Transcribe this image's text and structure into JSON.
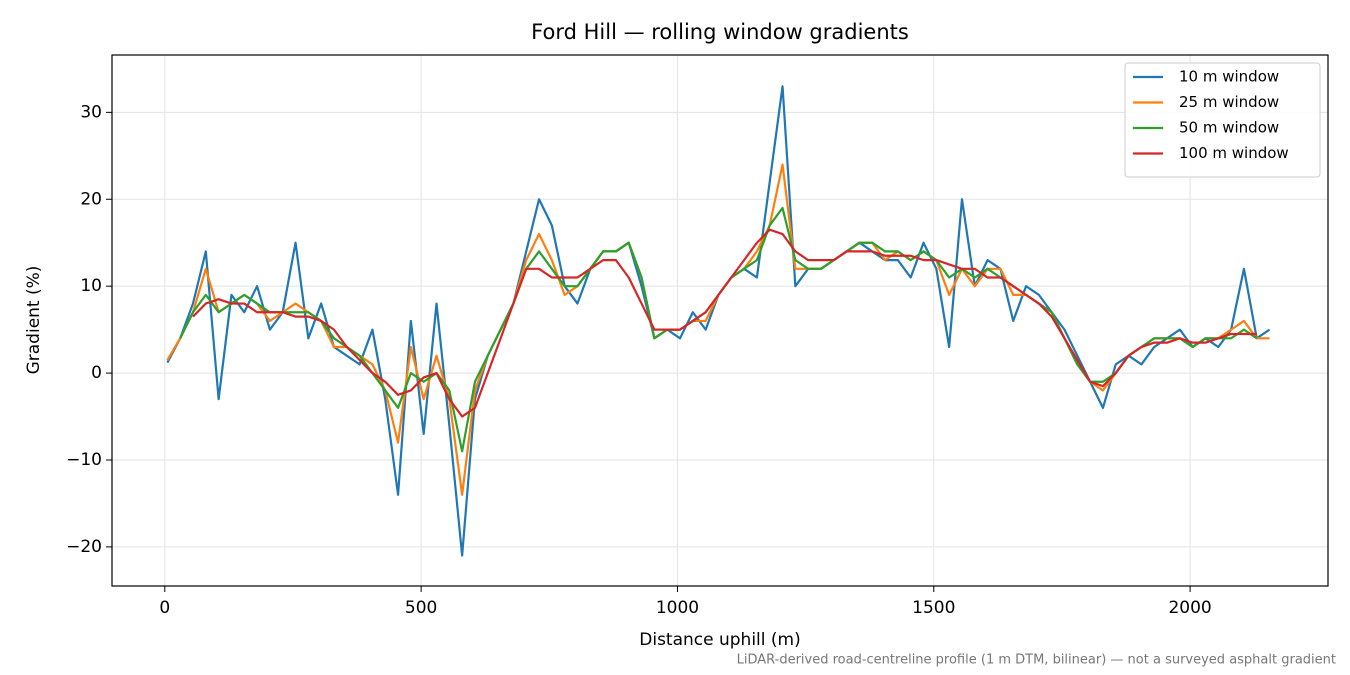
{
  "chart_data": {
    "type": "line",
    "title": "Ford Hill — rolling window gradients",
    "x_label": "Distance uphill (m)",
    "y_label": "Gradient (%)",
    "footnote": "LiDAR-derived road-centreline profile (1 m DTM, bilinear) — not a surveyed asphalt gradient",
    "x": [
      5,
      30,
      55,
      80,
      105,
      130,
      155,
      180,
      205,
      230,
      255,
      280,
      305,
      330,
      355,
      380,
      405,
      430,
      455,
      480,
      505,
      530,
      555,
      580,
      605,
      630,
      655,
      680,
      705,
      730,
      755,
      780,
      805,
      830,
      855,
      880,
      905,
      930,
      955,
      980,
      1005,
      1030,
      1055,
      1080,
      1105,
      1130,
      1155,
      1180,
      1205,
      1230,
      1255,
      1280,
      1305,
      1330,
      1355,
      1380,
      1405,
      1430,
      1455,
      1480,
      1505,
      1530,
      1555,
      1580,
      1605,
      1630,
      1655,
      1680,
      1705,
      1730,
      1755,
      1780,
      1805,
      1830,
      1855,
      1880,
      1905,
      1930,
      1955,
      1980,
      2005,
      2030,
      2055,
      2080,
      2105,
      2130,
      2155
    ],
    "series": [
      {
        "name": "10 m window",
        "color": "#1f77b4",
        "values": [
          1.2,
          4,
          8,
          14,
          -3,
          9,
          7,
          10,
          5,
          7,
          15,
          4,
          8,
          3,
          2,
          1,
          5,
          -3,
          -14,
          6,
          -7,
          8,
          -6,
          -21,
          -3,
          2,
          5,
          8,
          14,
          20,
          17,
          10,
          8,
          12,
          14,
          14,
          15,
          10,
          4,
          5,
          4,
          7,
          5,
          9,
          11,
          12,
          11,
          22,
          33,
          10,
          12,
          12,
          13,
          14,
          15,
          14,
          13,
          13,
          11,
          15,
          12,
          3,
          20,
          10,
          13,
          12,
          6,
          10,
          9,
          7,
          5,
          2,
          -1,
          -4,
          1,
          2,
          1,
          3,
          4,
          5,
          3,
          4,
          3,
          5,
          12,
          4,
          5
        ]
      },
      {
        "name": "25 m window",
        "color": "#ff7f0e",
        "values": [
          1.5,
          4,
          7,
          12,
          7,
          8,
          9,
          8,
          6,
          7,
          8,
          7,
          6,
          3,
          3,
          2,
          1,
          -2,
          -8,
          3,
          -3,
          2,
          -3,
          -14,
          -2,
          2,
          5,
          8,
          13,
          16,
          13,
          9,
          10,
          12,
          14,
          14,
          15,
          11,
          4,
          5,
          5,
          6,
          6,
          9,
          11,
          12,
          14,
          17,
          24,
          12,
          12,
          12,
          13,
          14,
          15,
          15,
          13,
          14,
          13,
          14,
          13,
          9,
          12,
          10,
          12,
          12,
          9,
          9,
          8,
          7,
          4,
          1,
          -1,
          -2,
          0,
          2,
          3,
          4,
          4,
          4,
          3,
          4,
          4,
          5,
          6,
          4,
          4
        ]
      },
      {
        "name": "50 m window",
        "color": "#2ca02c",
        "values": [
          null,
          4,
          7,
          9,
          7,
          8,
          9,
          8,
          7,
          7,
          7,
          7,
          6,
          4,
          3,
          2,
          0,
          -2,
          -4,
          0,
          -1,
          0,
          -2,
          -9,
          -1,
          2,
          5,
          8,
          12,
          14,
          12,
          10,
          10,
          12,
          14,
          14,
          15,
          11,
          4,
          5,
          5,
          6,
          7,
          9,
          11,
          12,
          13,
          17,
          19,
          13,
          12,
          12,
          13,
          14,
          15,
          15,
          14,
          14,
          13,
          14,
          13,
          11,
          12,
          11,
          12,
          11,
          10,
          9,
          8,
          7,
          4,
          1,
          -1,
          -1,
          0,
          2,
          3,
          4,
          4,
          4,
          3,
          4,
          4,
          4,
          5,
          4,
          null
        ]
      },
      {
        "name": "100 m window",
        "color": "#d62728",
        "values": [
          null,
          null,
          6.5,
          8,
          8.5,
          8,
          8,
          7,
          7,
          7,
          6.5,
          6.5,
          6,
          5,
          3,
          1.5,
          0,
          -1,
          -2.5,
          -2,
          -0.5,
          0,
          -3,
          -5,
          -4,
          0,
          4,
          8,
          12,
          12,
          11,
          11,
          11,
          12,
          13,
          13,
          11,
          8,
          5,
          5,
          5,
          6,
          7,
          9,
          11,
          13,
          15,
          16.5,
          16,
          14,
          13,
          13,
          13,
          14,
          14,
          14,
          13.5,
          13.5,
          13.5,
          13,
          13,
          12.5,
          12,
          12,
          11,
          11,
          10,
          9,
          8,
          6.5,
          4,
          1.5,
          -1,
          -1.5,
          0,
          2,
          3,
          3.5,
          3.5,
          4,
          3.5,
          3.5,
          4,
          4.5,
          4.5,
          4.5,
          null
        ]
      }
    ],
    "xlim": [
      -103,
      2269
    ],
    "ylim": [
      -24.5,
      36.6
    ],
    "xticks": [
      0,
      500,
      1000,
      1500,
      2000
    ],
    "yticks": [
      {
        "value": -20,
        "label": "−20"
      },
      {
        "value": -10,
        "label": "−10"
      },
      0,
      10,
      20,
      30
    ],
    "grid": true,
    "legend": "upper right"
  }
}
